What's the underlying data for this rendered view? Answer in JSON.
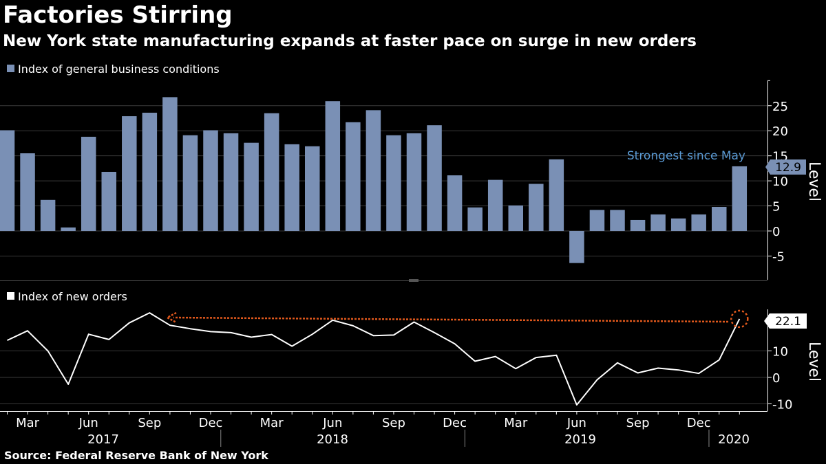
{
  "title": "Factories Stirring",
  "subtitle": "New York state manufacturing expands at faster pace on surge in new orders",
  "source": "Source: Federal Reserve Bank of New York",
  "colors": {
    "background": "#000000",
    "bars": "#7a90b5",
    "line": "#ffffff",
    "annotation_text": "#5b9bd5",
    "highlight": "#e0581c",
    "grid": "#3a3a3a"
  },
  "x_axis": {
    "month_labels": [
      "Mar",
      "Jun",
      "Sep",
      "Dec",
      "Mar",
      "Jun",
      "Sep",
      "Dec",
      "Mar",
      "Jun",
      "Sep",
      "Dec"
    ],
    "year_labels": [
      "2017",
      "2018",
      "2019",
      "2020"
    ]
  },
  "chart_data": [
    {
      "type": "bar",
      "legend": "Index of general business conditions",
      "ylabel": "Level",
      "ylim": [
        -10,
        30
      ],
      "yticks": [
        -5,
        0,
        5,
        10,
        15,
        20,
        25
      ],
      "grid": true,
      "categories": [
        "Feb 2017",
        "Mar 2017",
        "Apr 2017",
        "May 2017",
        "Jun 2017",
        "Jul 2017",
        "Aug 2017",
        "Sep 2017",
        "Oct 2017",
        "Nov 2017",
        "Dec 2017",
        "Jan 2018",
        "Feb 2018",
        "Mar 2018",
        "Apr 2018",
        "May 2018",
        "Jun 2018",
        "Jul 2018",
        "Aug 2018",
        "Sep 2018",
        "Oct 2018",
        "Nov 2018",
        "Dec 2018",
        "Jan 2019",
        "Feb 2019",
        "Mar 2019",
        "Apr 2019",
        "May 2019",
        "Jun 2019",
        "Jul 2019",
        "Aug 2019",
        "Sep 2019",
        "Oct 2019",
        "Nov 2019",
        "Dec 2019",
        "Jan 2020",
        "Feb 2020"
      ],
      "values": [
        20.1,
        15.5,
        6.2,
        0.7,
        18.8,
        11.8,
        22.9,
        23.6,
        26.7,
        19.1,
        20.1,
        19.5,
        17.6,
        23.5,
        17.3,
        16.9,
        25.9,
        21.7,
        24.1,
        19.1,
        19.5,
        21.1,
        11.1,
        4.7,
        10.2,
        5.1,
        9.4,
        14.3,
        -6.4,
        4.2,
        4.2,
        2.2,
        3.3,
        2.5,
        3.3,
        4.8,
        12.9
      ],
      "latest_label": "12.9",
      "annotation": "Strongest since May"
    },
    {
      "type": "line",
      "legend": "Index of new orders",
      "ylabel": "Level",
      "ylim": [
        -13,
        27
      ],
      "yticks": [
        -10,
        0,
        10
      ],
      "grid": true,
      "categories": [
        "Feb 2017",
        "Mar 2017",
        "Apr 2017",
        "May 2017",
        "Jun 2017",
        "Jul 2017",
        "Aug 2017",
        "Sep 2017",
        "Oct 2017",
        "Nov 2017",
        "Dec 2017",
        "Jan 2018",
        "Feb 2018",
        "Mar 2018",
        "Apr 2018",
        "May 2018",
        "Jun 2018",
        "Jul 2018",
        "Aug 2018",
        "Sep 2018",
        "Oct 2018",
        "Nov 2018",
        "Dec 2018",
        "Jan 2019",
        "Feb 2019",
        "Mar 2019",
        "Apr 2019",
        "May 2019",
        "Jun 2019",
        "Jul 2019",
        "Aug 2019",
        "Sep 2019",
        "Oct 2019",
        "Nov 2019",
        "Dec 2019",
        "Jan 2020",
        "Feb 2020"
      ],
      "values": [
        14.0,
        17.6,
        10.0,
        -2.6,
        16.3,
        14.3,
        20.6,
        24.4,
        19.7,
        18.4,
        17.3,
        16.9,
        15.2,
        16.2,
        11.8,
        16.3,
        21.6,
        19.5,
        15.8,
        16.0,
        20.9,
        16.9,
        12.7,
        6.1,
        7.9,
        3.3,
        7.5,
        8.4,
        -10.4,
        -0.9,
        5.5,
        1.7,
        3.5,
        2.8,
        1.5,
        6.6,
        22.1
      ],
      "latest_label": "22.1"
    }
  ]
}
